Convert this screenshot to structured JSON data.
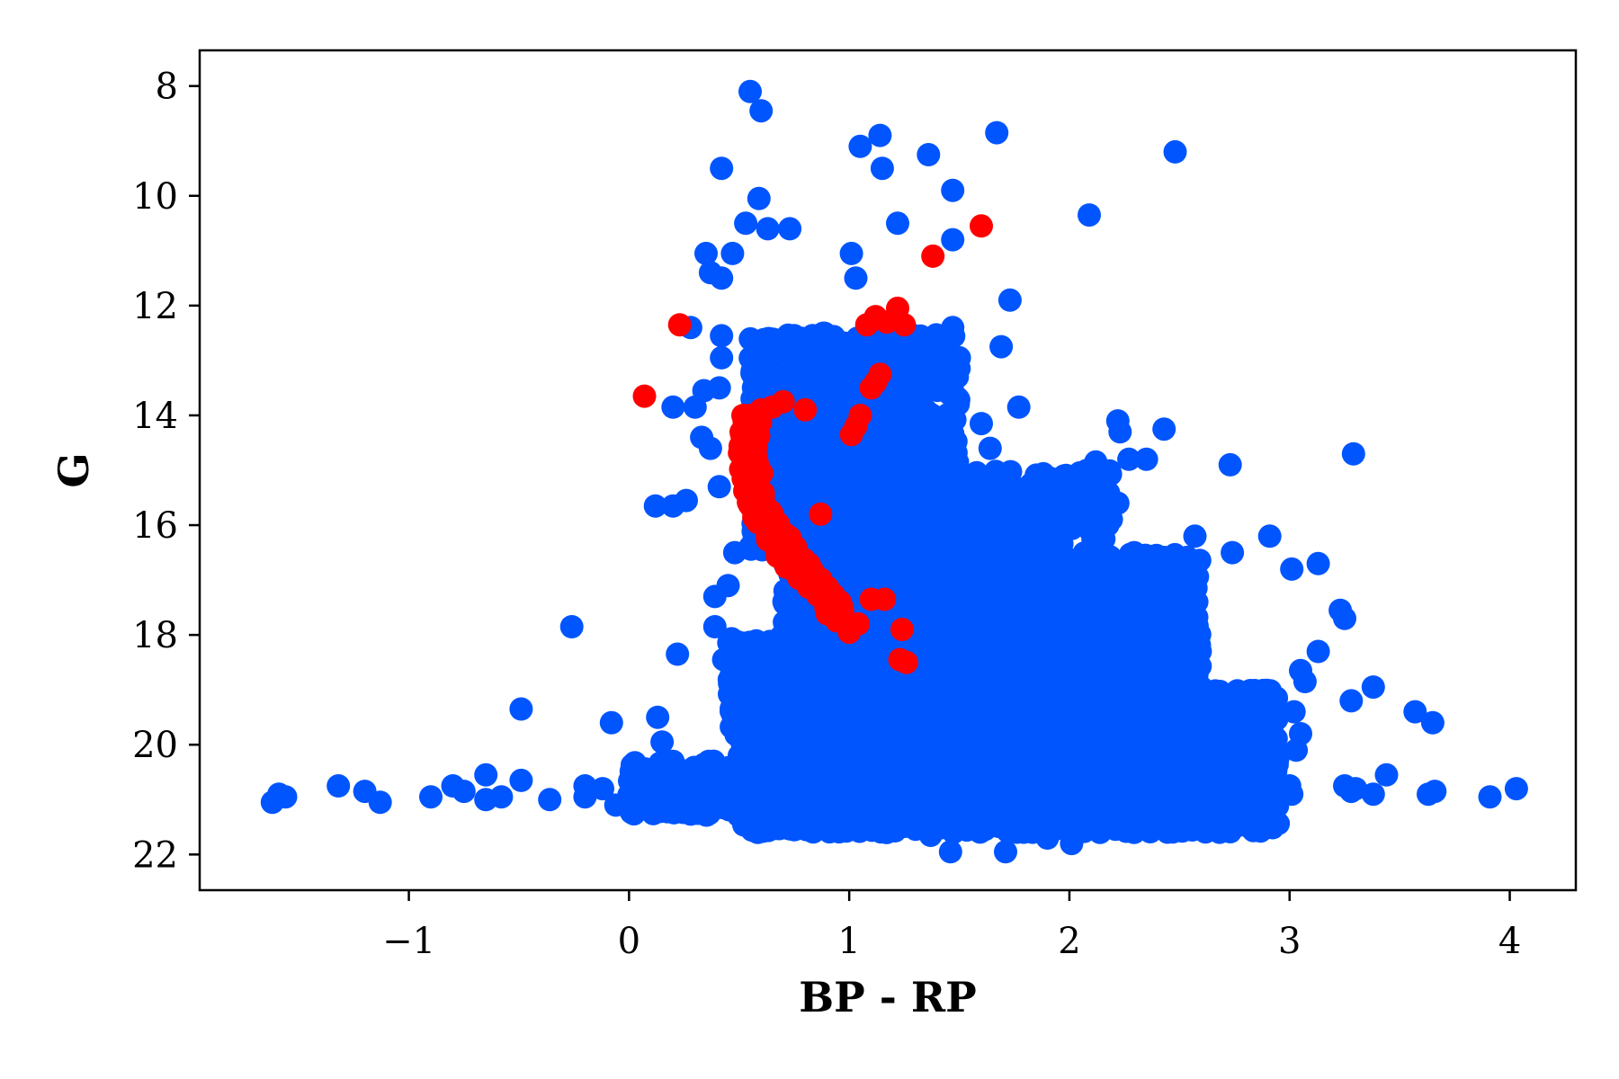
{
  "chart_data": {
    "type": "scatter",
    "title": "",
    "xlabel": "BP - RP",
    "ylabel": "G",
    "xlim": [
      -1.95,
      4.3
    ],
    "ylim": [
      22.65,
      7.35
    ],
    "y_inverted": true,
    "grid": false,
    "legend": "none",
    "x_ticks": [
      -1,
      0,
      1,
      2,
      3,
      4
    ],
    "x_tick_labels": [
      "−1",
      "0",
      "1",
      "2",
      "3",
      "4"
    ],
    "y_ticks": [
      8,
      10,
      12,
      14,
      16,
      18,
      20,
      22
    ],
    "y_tick_labels": [
      "8",
      "10",
      "12",
      "14",
      "16",
      "18",
      "20",
      "22"
    ],
    "series": [
      {
        "color": "#0055ff",
        "dense_regions": [
          {
            "x_range": [
              0.5,
              2.95
            ],
            "y_range": [
              19.0,
              21.6
            ],
            "n": 2600
          },
          {
            "x_range": [
              0.7,
              2.6
            ],
            "y_range": [
              16.5,
              19.5
            ],
            "n": 1600
          },
          {
            "x_range": [
              0.55,
              1.5
            ],
            "y_range": [
              12.5,
              16.5
            ],
            "n": 900
          },
          {
            "x_range": [
              0.0,
              0.6
            ],
            "y_range": [
              20.3,
              21.3
            ],
            "n": 180
          },
          {
            "x_range": [
              1.5,
              2.2
            ],
            "y_range": [
              15.0,
              17.0
            ],
            "n": 200
          },
          {
            "x_range": [
              0.45,
              0.75
            ],
            "y_range": [
              18.0,
              20.0
            ],
            "n": 120
          }
        ],
        "points": [
          [
            0.55,
            8.1
          ],
          [
            0.6,
            8.45
          ],
          [
            1.67,
            8.85
          ],
          [
            1.14,
            8.9
          ],
          [
            1.05,
            9.1
          ],
          [
            1.36,
            9.25
          ],
          [
            2.48,
            9.2
          ],
          [
            0.42,
            9.5
          ],
          [
            1.15,
            9.5
          ],
          [
            1.47,
            9.9
          ],
          [
            0.59,
            10.05
          ],
          [
            2.09,
            10.35
          ],
          [
            0.53,
            10.5
          ],
          [
            0.63,
            10.6
          ],
          [
            0.73,
            10.6
          ],
          [
            1.22,
            10.5
          ],
          [
            1.47,
            10.8
          ],
          [
            0.35,
            11.05
          ],
          [
            0.47,
            11.05
          ],
          [
            1.01,
            11.05
          ],
          [
            0.37,
            11.4
          ],
          [
            0.42,
            11.5
          ],
          [
            1.03,
            11.5
          ],
          [
            1.73,
            11.9
          ],
          [
            0.28,
            12.4
          ],
          [
            0.42,
            12.55
          ],
          [
            1.47,
            12.4
          ],
          [
            1.69,
            12.75
          ],
          [
            0.42,
            12.95
          ],
          [
            1.33,
            12.7
          ],
          [
            1.5,
            12.95
          ],
          [
            0.34,
            13.55
          ],
          [
            0.41,
            13.5
          ],
          [
            0.3,
            13.85
          ],
          [
            0.2,
            13.85
          ],
          [
            1.77,
            13.85
          ],
          [
            1.42,
            13.2
          ],
          [
            1.38,
            13.4
          ],
          [
            0.33,
            14.4
          ],
          [
            0.37,
            14.6
          ],
          [
            1.6,
            14.15
          ],
          [
            2.22,
            14.1
          ],
          [
            2.23,
            14.3
          ],
          [
            2.43,
            14.25
          ],
          [
            1.64,
            14.6
          ],
          [
            2.12,
            14.85
          ],
          [
            2.27,
            14.8
          ],
          [
            2.35,
            14.8
          ],
          [
            2.73,
            14.9
          ],
          [
            3.29,
            14.7
          ],
          [
            0.41,
            15.3
          ],
          [
            0.12,
            15.65
          ],
          [
            0.2,
            15.65
          ],
          [
            0.26,
            15.55
          ],
          [
            1.73,
            15.2
          ],
          [
            1.8,
            15.5
          ],
          [
            2.08,
            15.4
          ],
          [
            2.22,
            15.6
          ],
          [
            2.03,
            15.95
          ],
          [
            2.57,
            16.2
          ],
          [
            2.74,
            16.5
          ],
          [
            2.91,
            16.2
          ],
          [
            0.48,
            16.5
          ],
          [
            3.13,
            16.7
          ],
          [
            3.01,
            16.8
          ],
          [
            3.23,
            17.55
          ],
          [
            3.25,
            17.7
          ],
          [
            0.39,
            17.3
          ],
          [
            0.45,
            17.1
          ],
          [
            0.39,
            17.85
          ],
          [
            -0.26,
            17.85
          ],
          [
            0.22,
            18.35
          ],
          [
            0.43,
            18.45
          ],
          [
            3.13,
            18.3
          ],
          [
            3.05,
            18.65
          ],
          [
            3.07,
            18.85
          ],
          [
            3.38,
            18.95
          ],
          [
            3.28,
            19.2
          ],
          [
            -0.49,
            19.35
          ],
          [
            -0.08,
            19.6
          ],
          [
            0.13,
            19.5
          ],
          [
            0.15,
            19.95
          ],
          [
            3.57,
            19.4
          ],
          [
            3.65,
            19.6
          ],
          [
            3.02,
            19.4
          ],
          [
            3.05,
            19.8
          ],
          [
            3.03,
            20.1
          ],
          [
            -1.62,
            21.05
          ],
          [
            -1.59,
            20.9
          ],
          [
            -1.56,
            20.95
          ],
          [
            -1.32,
            20.75
          ],
          [
            -1.2,
            20.85
          ],
          [
            -1.13,
            21.05
          ],
          [
            -0.9,
            20.95
          ],
          [
            -0.8,
            20.75
          ],
          [
            -0.75,
            20.85
          ],
          [
            -0.65,
            20.55
          ],
          [
            -0.65,
            21.0
          ],
          [
            -0.58,
            20.95
          ],
          [
            -0.49,
            20.65
          ],
          [
            -0.36,
            21.0
          ],
          [
            -0.2,
            20.75
          ],
          [
            -0.2,
            20.95
          ],
          [
            -0.12,
            20.8
          ],
          [
            -0.06,
            21.1
          ],
          [
            0.05,
            21.0
          ],
          [
            3.25,
            20.75
          ],
          [
            3.28,
            20.85
          ],
          [
            3.3,
            20.8
          ],
          [
            3.38,
            20.9
          ],
          [
            3.44,
            20.55
          ],
          [
            3.63,
            20.9
          ],
          [
            3.66,
            20.85
          ],
          [
            3.91,
            20.95
          ],
          [
            4.03,
            20.8
          ],
          [
            3.0,
            20.75
          ],
          [
            3.01,
            20.9
          ],
          [
            2.93,
            21.2
          ],
          [
            1.46,
            21.95
          ],
          [
            1.71,
            21.95
          ],
          [
            1.37,
            21.65
          ],
          [
            1.17,
            21.6
          ],
          [
            0.91,
            21.45
          ],
          [
            0.82,
            21.35
          ],
          [
            1.9,
            21.7
          ],
          [
            2.01,
            21.8
          ],
          [
            2.26,
            21.45
          ],
          [
            2.4,
            21.3
          ]
        ]
      },
      {
        "color": "#ff0000",
        "points": [
          [
            1.6,
            10.55
          ],
          [
            1.38,
            11.1
          ],
          [
            0.23,
            12.35
          ],
          [
            1.08,
            12.35
          ],
          [
            1.12,
            12.2
          ],
          [
            1.17,
            12.3
          ],
          [
            1.22,
            12.05
          ],
          [
            1.25,
            12.35
          ],
          [
            1.14,
            13.25
          ],
          [
            1.12,
            13.4
          ],
          [
            1.1,
            13.5
          ],
          [
            0.07,
            13.65
          ],
          [
            0.6,
            13.9
          ],
          [
            0.65,
            13.85
          ],
          [
            0.7,
            13.75
          ],
          [
            0.8,
            13.9
          ],
          [
            1.03,
            14.2
          ],
          [
            1.05,
            14.0
          ],
          [
            1.01,
            14.35
          ],
          [
            1.24,
            17.9
          ],
          [
            1.23,
            18.45
          ],
          [
            1.26,
            18.5
          ],
          [
            1.16,
            17.35
          ],
          [
            1.1,
            17.35
          ],
          [
            1.0,
            17.95
          ],
          [
            1.04,
            17.8
          ],
          [
            0.87,
            15.8
          ],
          [
            0.55,
            14.0
          ]
        ],
        "sequence": {
          "control": [
            [
              0.56,
              14.0
            ],
            [
              0.55,
              14.8
            ],
            [
              0.57,
              15.5
            ],
            [
              0.64,
              16.0
            ],
            [
              0.74,
              16.6
            ],
            [
              0.86,
              17.1
            ],
            [
              0.97,
              17.7
            ]
          ],
          "n": 230,
          "spread_x": 0.05,
          "spread_y": 0.1
        }
      }
    ]
  }
}
